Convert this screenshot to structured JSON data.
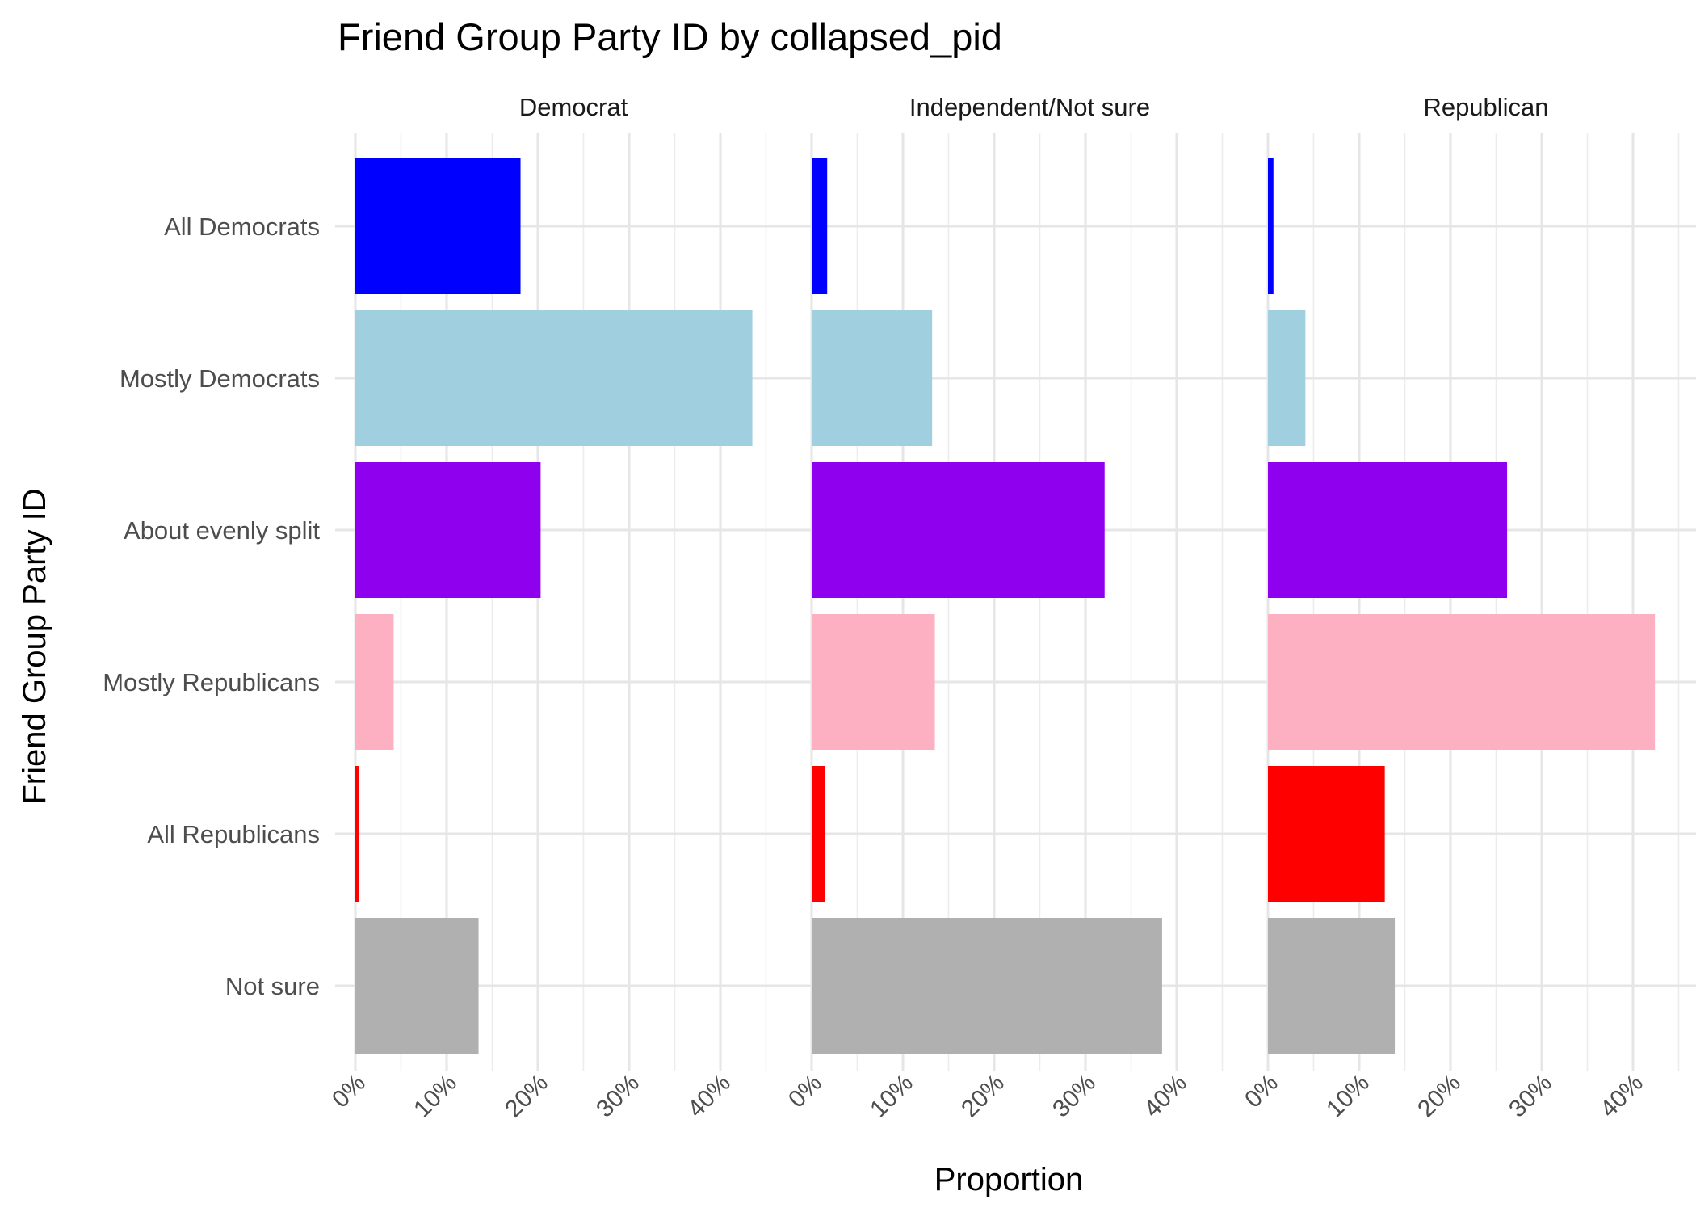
{
  "chart_data": {
    "type": "bar",
    "orientation": "horizontal",
    "title": "Friend Group Party ID by collapsed_pid",
    "xlabel": "Proportion",
    "ylabel": "Friend Group Party ID",
    "xlim": [
      0,
      0.43
    ],
    "x_ticks": [
      "0%",
      "10%",
      "20%",
      "30%",
      "40%"
    ],
    "categories": [
      "All Democrats",
      "Mostly Democrats",
      "About evenly split",
      "Mostly Republicans",
      "All Republicans",
      "Not sure"
    ],
    "colors": [
      "#0000ff",
      "#a0cfdf",
      "#8f00ee",
      "#fdb0c1",
      "#ff0000",
      "#b0b0b0"
    ],
    "grid": true,
    "legend": "none",
    "panels": [
      {
        "name": "Democrat",
        "values": [
          0.181,
          0.435,
          0.203,
          0.042,
          0.004,
          0.135
        ]
      },
      {
        "name": "Independent/Not sure",
        "values": [
          0.017,
          0.132,
          0.321,
          0.135,
          0.015,
          0.384
        ]
      },
      {
        "name": "Republican",
        "values": [
          0.006,
          0.041,
          0.262,
          0.424,
          0.128,
          0.139
        ]
      }
    ]
  }
}
